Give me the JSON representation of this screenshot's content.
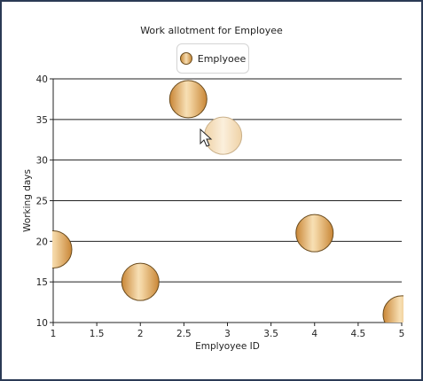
{
  "chart_data": {
    "type": "bubble",
    "title": "Work allotment for Employee",
    "xlabel": "Emplyoyee ID",
    "ylabel": "Working days",
    "xlim": [
      1,
      5
    ],
    "ylim": [
      10,
      40
    ],
    "x_ticks": [
      "1",
      "1.5",
      "2",
      "2.5",
      "3",
      "3.5",
      "4",
      "4.5",
      "5"
    ],
    "y_ticks": [
      "40",
      "35",
      "30",
      "25",
      "20",
      "15",
      "10"
    ],
    "grid": "horizontal",
    "legend": "top-center",
    "series": [
      {
        "name": "Emplyoee",
        "color": "#d89a48",
        "points": [
          {
            "x": 1.0,
            "y": 19,
            "highlight": false
          },
          {
            "x": 2.0,
            "y": 15,
            "highlight": false
          },
          {
            "x": 2.55,
            "y": 37.5,
            "highlight": false
          },
          {
            "x": 2.95,
            "y": 33,
            "highlight": true
          },
          {
            "x": 4.0,
            "y": 21,
            "highlight": false
          },
          {
            "x": 5.0,
            "y": 11,
            "highlight": false
          }
        ]
      }
    ]
  },
  "icons": {
    "cursor": "mouse-pointer-icon"
  }
}
